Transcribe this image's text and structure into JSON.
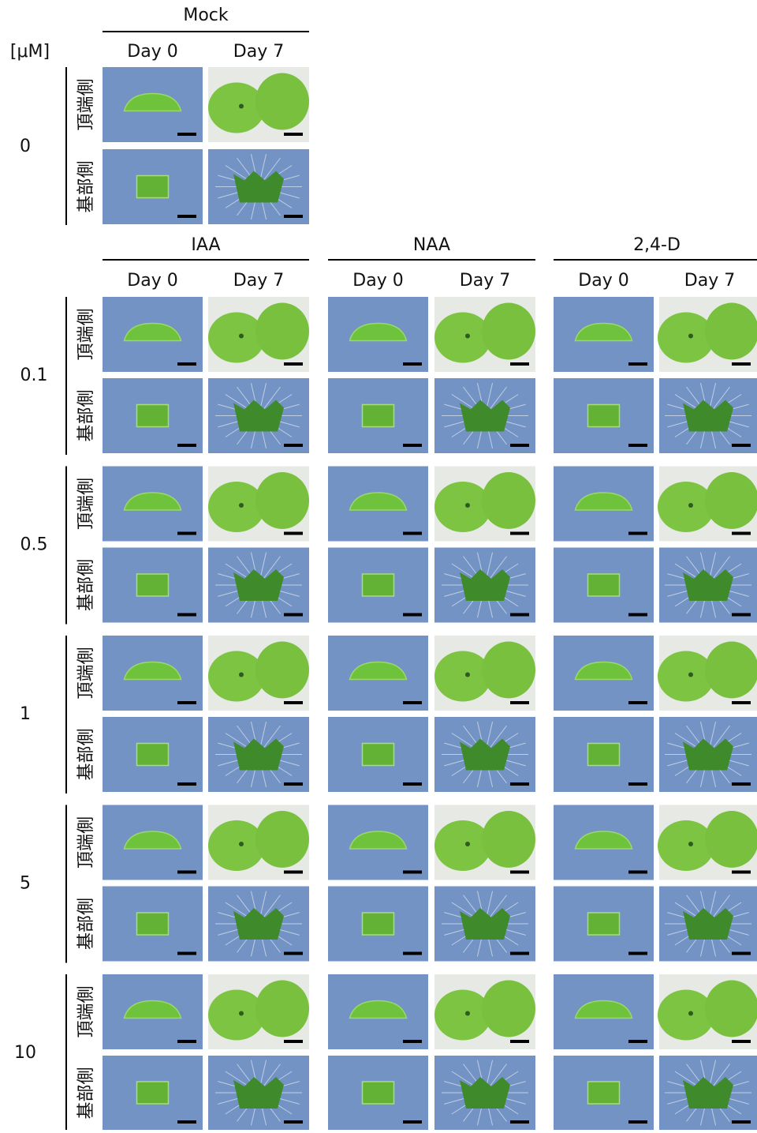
{
  "unit_label": "[μM]",
  "mock": {
    "title": "Mock",
    "days": [
      "Day 0",
      "Day 7"
    ],
    "concentration": "0",
    "rows": [
      "頂端側",
      "基部側"
    ]
  },
  "treatments": [
    {
      "title": "IAA",
      "days": [
        "Day 0",
        "Day 7"
      ]
    },
    {
      "title": "NAA",
      "days": [
        "Day 0",
        "Day 7"
      ]
    },
    {
      "title": "2,4-D",
      "days": [
        "Day 0",
        "Day 7"
      ]
    }
  ],
  "concentrations": [
    {
      "label": "0.1",
      "rows": [
        "頂端側",
        "基部側"
      ]
    },
    {
      "label": "0.5",
      "rows": [
        "頂端側",
        "基部側"
      ]
    },
    {
      "label": "1",
      "rows": [
        "頂端側",
        "基部側"
      ]
    },
    {
      "label": "5",
      "rows": [
        "頂端側",
        "基部側"
      ]
    },
    {
      "label": "10",
      "rows": [
        "頂端側",
        "基部側"
      ]
    }
  ]
}
